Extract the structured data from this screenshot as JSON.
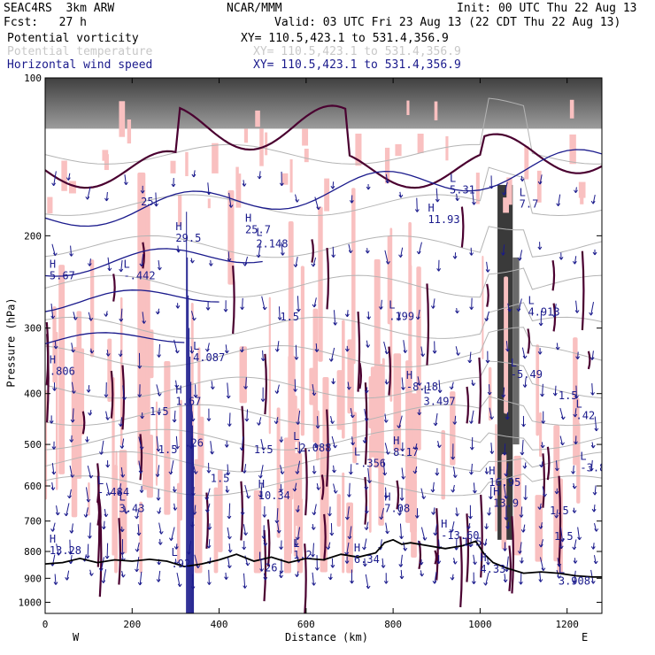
{
  "header": {
    "experiment": "SEAC4RS  3km ARW",
    "center": "NCAR/MMM",
    "init": "Init: 00 UTC Thu 22 Aug 13",
    "fcst": "Fcst:   27 h",
    "valid": "Valid: 03 UTC Fri 23 Aug 13 (22 CDT Thu 22 Aug 13)"
  },
  "legend": [
    {
      "label": "Potential vorticity",
      "xy": "XY= 110.5,423.1 to 531.4,356.9",
      "color": "#000000"
    },
    {
      "label": "Potential temperature",
      "xy": "XY= 110.5,423.1 to 531.4,356.9",
      "color": "#c8c8c8"
    },
    {
      "label": "Horizontal wind speed",
      "xy": "XY= 110.5,423.1 to 531.4,356.9",
      "color": "#1a1a8c"
    }
  ],
  "chart_data": {
    "type": "cross-section",
    "xlabel": "Distance (km)",
    "ylabel": "Pressure (hPa)",
    "x_range": [
      0,
      1280
    ],
    "y_range": [
      100,
      1050
    ],
    "y_scale": "log-pressure",
    "x_ticks": [
      0,
      200,
      400,
      600,
      800,
      1000,
      1200
    ],
    "y_ticks": [
      100,
      200,
      300,
      400,
      500,
      600,
      700,
      800,
      900,
      1000
    ],
    "x_end_labels": {
      "left": "W",
      "right": "E"
    },
    "colors": {
      "pv_fill": "#f9c0c0",
      "terrain_line": "#000000",
      "pv_contour": "#4a0030",
      "theta_contour": "#b4b4b4",
      "wind_contour": "#1a1a8c",
      "shade_dark": "#3a3a3a"
    },
    "terrain": [
      [
        0,
        845
      ],
      [
        40,
        840
      ],
      [
        80,
        825
      ],
      [
        120,
        840
      ],
      [
        160,
        830
      ],
      [
        200,
        835
      ],
      [
        240,
        828
      ],
      [
        280,
        835
      ],
      [
        320,
        855
      ],
      [
        360,
        845
      ],
      [
        400,
        830
      ],
      [
        440,
        810
      ],
      [
        480,
        835
      ],
      [
        520,
        820
      ],
      [
        560,
        840
      ],
      [
        600,
        825
      ],
      [
        640,
        830
      ],
      [
        680,
        810
      ],
      [
        720,
        820
      ],
      [
        760,
        805
      ],
      [
        780,
        770
      ],
      [
        800,
        760
      ],
      [
        820,
        775
      ],
      [
        840,
        770
      ],
      [
        860,
        775
      ],
      [
        880,
        780
      ],
      [
        920,
        790
      ],
      [
        960,
        780
      ],
      [
        990,
        765
      ],
      [
        1010,
        810
      ],
      [
        1030,
        840
      ],
      [
        1060,
        860
      ],
      [
        1100,
        880
      ],
      [
        1140,
        875
      ],
      [
        1180,
        880
      ],
      [
        1220,
        890
      ],
      [
        1260,
        895
      ],
      [
        1280,
        895
      ]
    ],
    "annotations": [
      {
        "type": "H",
        "x": 300,
        "y": 195,
        "value": "29.5"
      },
      {
        "type": "H",
        "x": 460,
        "y": 188,
        "value": "25.7"
      },
      {
        "type": "L",
        "x": 180,
        "y": 230,
        "value": "-.442"
      },
      {
        "type": "H",
        "x": 10,
        "y": 230,
        "value": "5.67"
      },
      {
        "type": "L",
        "x": 485,
        "y": 200,
        "value": "2.148"
      },
      {
        "type": "H",
        "x": 880,
        "y": 180,
        "value": "11.93"
      },
      {
        "type": "L",
        "x": 930,
        "y": 158,
        "value": "5.31"
      },
      {
        "type": "L",
        "x": 1090,
        "y": 168,
        "value": "7.7"
      },
      {
        "type": "L",
        "x": 790,
        "y": 275,
        "value": ".199"
      },
      {
        "type": "L",
        "x": 1110,
        "y": 270,
        "value": "4.913"
      },
      {
        "type": "L",
        "x": 340,
        "y": 330,
        "value": "4.087"
      },
      {
        "type": "H",
        "x": 10,
        "y": 350,
        "value": ".806"
      },
      {
        "type": "H",
        "x": 830,
        "y": 375,
        "value": "-8.18"
      },
      {
        "type": "L",
        "x": 1070,
        "y": 355,
        "value": "-5.49"
      },
      {
        "type": "H",
        "x": 300,
        "y": 400,
        "value": "1.67"
      },
      {
        "type": "L",
        "x": 870,
        "y": 400,
        "value": "3.497"
      },
      {
        "type": "L",
        "x": 1220,
        "y": 425,
        "value": ".42"
      },
      {
        "type": "L",
        "x": 570,
        "y": 490,
        "value": "-2.088"
      },
      {
        "type": "L",
        "x": 710,
        "y": 525,
        "value": "-.356"
      },
      {
        "type": "H",
        "x": 800,
        "y": 500,
        "value": "8.17"
      },
      {
        "type": "H",
        "x": 1020,
        "y": 570,
        "value": "16.95"
      },
      {
        "type": "L",
        "x": 1230,
        "y": 535,
        "value": "-3.8"
      },
      {
        "type": "L",
        "x": 120,
        "y": 595,
        "value": "-.484"
      },
      {
        "type": "L",
        "x": 170,
        "y": 640,
        "value": "3.43"
      },
      {
        "type": "H",
        "x": 490,
        "y": 605,
        "value": "10.34"
      },
      {
        "type": "H",
        "x": 780,
        "y": 640,
        "value": "7.08"
      },
      {
        "type": "H",
        "x": 1030,
        "y": 625,
        "value": "13.9"
      },
      {
        "type": "H",
        "x": 910,
        "y": 720,
        "value": "-13.60"
      },
      {
        "type": "H",
        "x": 10,
        "y": 770,
        "value": "13.28"
      },
      {
        "type": "L",
        "x": 570,
        "y": 785,
        "value": "1.2"
      },
      {
        "type": "L",
        "x": 290,
        "y": 815,
        "value": ".92"
      },
      {
        "type": "H",
        "x": 710,
        "y": 800,
        "value": "6.34"
      },
      {
        "type": "L",
        "x": 490,
        "y": 830,
        "value": ".26"
      },
      {
        "type": "H",
        "x": 1000,
        "y": 835,
        "value": "4.33"
      },
      {
        "type": "L",
        "x": 1180,
        "y": 880,
        "value": "3.908"
      }
    ],
    "theta_labels": [
      {
        "x": 260,
        "y": 520,
        "value": "1.5"
      },
      {
        "x": 240,
        "y": 440,
        "value": "1.5"
      },
      {
        "x": 540,
        "y": 290,
        "value": "1.5"
      },
      {
        "x": 480,
        "y": 520,
        "value": "1.5"
      },
      {
        "x": 380,
        "y": 590,
        "value": "1.5"
      },
      {
        "x": 320,
        "y": 505,
        "value": ".26"
      },
      {
        "x": 1180,
        "y": 410,
        "value": "1.5"
      },
      {
        "x": 1160,
        "y": 680,
        "value": "1.5"
      },
      {
        "x": 1170,
        "y": 760,
        "value": "1.5"
      },
      {
        "x": 960,
        "y": 780,
        "value": "1.5"
      }
    ],
    "wind_labels": [
      {
        "x": 220,
        "y": 175,
        "value": "25"
      }
    ]
  }
}
